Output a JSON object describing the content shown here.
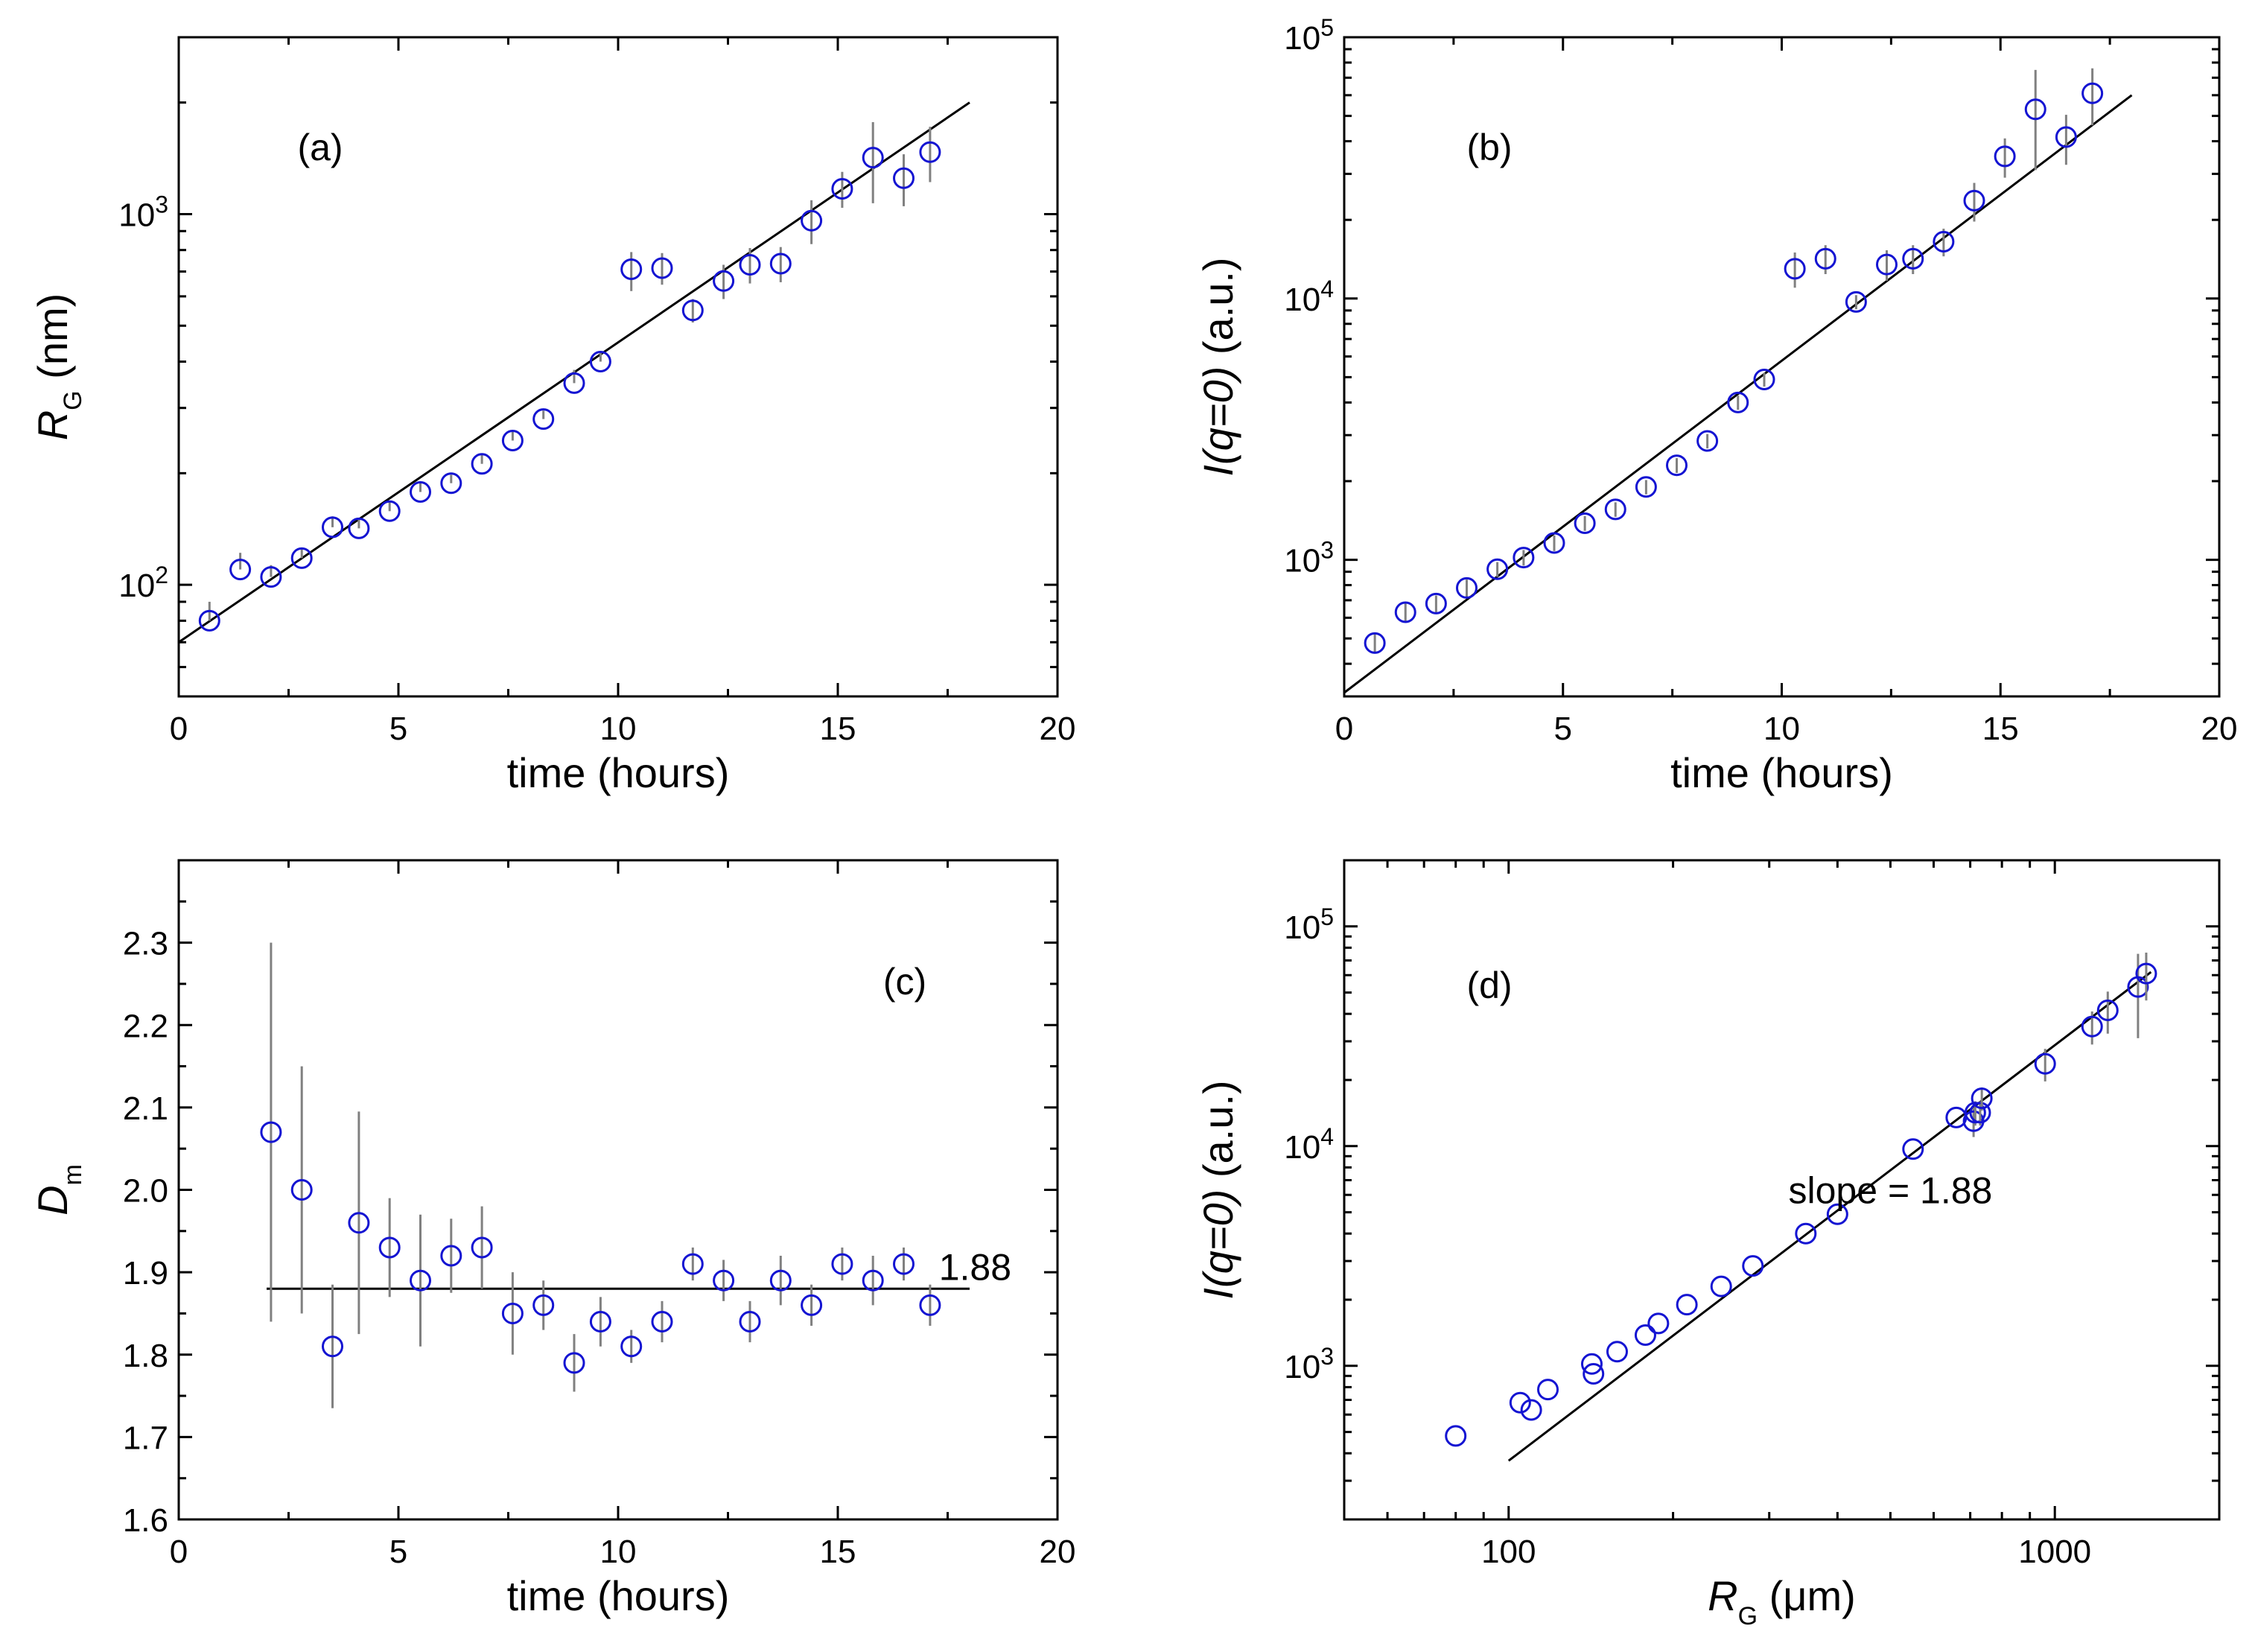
{
  "chart_data": [
    {
      "type": "scatter",
      "panel": "(a)",
      "xlabel": "time (hours)",
      "ylabel": {
        "main": "R",
        "sub": "G",
        "unit": " (nm)"
      },
      "xscale": "linear",
      "yscale": "log",
      "xlim": [
        0,
        20
      ],
      "ylim": [
        50,
        3000
      ],
      "xticks": [
        0,
        5,
        10,
        15,
        20
      ],
      "yticks": [
        {
          "value": 100,
          "base": "10",
          "exp": "2"
        },
        {
          "value": 1000,
          "base": "10",
          "exp": "3"
        }
      ],
      "series": [
        {
          "name": "data",
          "x": [
            0.7,
            1.4,
            2.1,
            2.8,
            3.5,
            4.1,
            4.8,
            5.5,
            6.2,
            6.9,
            7.6,
            8.3,
            9.0,
            9.6,
            10.3,
            11.0,
            11.7,
            12.4,
            13.0,
            13.7,
            14.4,
            15.1,
            15.8,
            16.5,
            17.1
          ],
          "y": [
            80,
            110,
            105,
            118,
            143,
            142,
            158,
            178,
            188,
            212,
            245,
            280,
            350,
            400,
            710,
            715,
            550,
            660,
            730,
            735,
            960,
            1170,
            1420,
            1250,
            1470
          ],
          "err": [
            [
              0,
              10
            ],
            [
              0,
              12
            ],
            [
              0,
              8
            ],
            [
              0,
              8
            ],
            [
              0,
              10
            ],
            [
              0,
              8
            ],
            [
              0,
              9
            ],
            [
              0,
              10
            ],
            [
              0,
              10
            ],
            [
              0,
              12
            ],
            [
              0,
              14
            ],
            [
              0,
              15
            ],
            [
              0,
              30
            ],
            [
              0,
              25
            ],
            [
              90,
              80
            ],
            [
              70,
              70
            ],
            [
              40,
              40
            ],
            [
              70,
              70
            ],
            [
              80,
              80
            ],
            [
              80,
              80
            ],
            [
              130,
              130
            ],
            [
              130,
              130
            ],
            [
              350,
              350
            ],
            [
              200,
              200
            ],
            [
              250,
              250
            ]
          ]
        }
      ],
      "fit": {
        "x": [
          0,
          18
        ],
        "y": [
          70,
          2000
        ]
      },
      "annotations": []
    },
    {
      "type": "scatter",
      "panel": "(b)",
      "xlabel": "time (hours)",
      "ylabel": {
        "main": "I(q=0)",
        "sub": "",
        "unit": " (a.u.)"
      },
      "xscale": "linear",
      "yscale": "log",
      "xlim": [
        0,
        20
      ],
      "ylim": [
        300,
        100000
      ],
      "xticks": [
        0,
        5,
        10,
        15,
        20
      ],
      "yticks": [
        {
          "value": 1000,
          "base": "10",
          "exp": "3"
        },
        {
          "value": 10000,
          "base": "10",
          "exp": "4"
        },
        {
          "value": 100000,
          "base": "10",
          "exp": "5"
        }
      ],
      "series": [
        {
          "name": "data",
          "x": [
            0.7,
            1.4,
            2.1,
            2.8,
            3.5,
            4.1,
            4.8,
            5.5,
            6.2,
            6.9,
            7.6,
            8.3,
            9.0,
            9.6,
            10.3,
            11.0,
            11.7,
            12.4,
            13.0,
            13.7,
            14.4,
            15.1,
            15.8,
            16.5,
            17.1
          ],
          "y": [
            480,
            630,
            680,
            780,
            920,
            1020,
            1160,
            1380,
            1560,
            1900,
            2300,
            2850,
            4000,
            4900,
            13000,
            14200,
            9700,
            13500,
            14200,
            16500,
            23700,
            35000,
            53000,
            41500,
            61000
          ],
          "err": [
            [
              40,
              40
            ],
            [
              50,
              50
            ],
            [
              50,
              50
            ],
            [
              60,
              60
            ],
            [
              60,
              60
            ],
            [
              70,
              70
            ],
            [
              80,
              80
            ],
            [
              90,
              90
            ],
            [
              100,
              100
            ],
            [
              120,
              120
            ],
            [
              150,
              150
            ],
            [
              180,
              180
            ],
            [
              250,
              250
            ],
            [
              300,
              300
            ],
            [
              2000,
              2000
            ],
            [
              1800,
              1800
            ],
            [
              600,
              600
            ],
            [
              1800,
              1800
            ],
            [
              1800,
              1800
            ],
            [
              2000,
              2000
            ],
            [
              4000,
              4000
            ],
            [
              6000,
              6000
            ],
            [
              22000,
              22000
            ],
            [
              9000,
              9000
            ],
            [
              15000,
              15000
            ]
          ]
        }
      ],
      "fit": {
        "x": [
          0,
          18
        ],
        "y": [
          310,
          60000
        ]
      },
      "annotations": []
    },
    {
      "type": "scatter",
      "panel": "(c)",
      "xlabel": "time (hours)",
      "ylabel": {
        "main": "D",
        "sub": "m",
        "unit": ""
      },
      "xscale": "linear",
      "yscale": "linear",
      "xlim": [
        0,
        20
      ],
      "ylim": [
        1.6,
        2.4
      ],
      "xticks": [
        0,
        5,
        10,
        15,
        20
      ],
      "yticks": [
        {
          "value": 1.6,
          "label": "1.6"
        },
        {
          "value": 1.7,
          "label": "1.7"
        },
        {
          "value": 1.8,
          "label": "1.8"
        },
        {
          "value": 1.9,
          "label": "1.9"
        },
        {
          "value": 2.0,
          "label": "2.0"
        },
        {
          "value": 2.1,
          "label": "2.1"
        },
        {
          "value": 2.2,
          "label": "2.2"
        },
        {
          "value": 2.3,
          "label": "2.3"
        }
      ],
      "series": [
        {
          "name": "data",
          "x": [
            2.1,
            2.8,
            3.5,
            4.1,
            4.8,
            5.5,
            6.2,
            6.9,
            7.6,
            8.3,
            9.0,
            9.6,
            10.3,
            11.0,
            11.7,
            12.4,
            13.0,
            13.7,
            14.4,
            15.1,
            15.8,
            16.5,
            17.1
          ],
          "y": [
            2.07,
            2.0,
            1.81,
            1.96,
            1.93,
            1.89,
            1.92,
            1.93,
            1.85,
            1.86,
            1.79,
            1.84,
            1.81,
            1.84,
            1.91,
            1.89,
            1.84,
            1.89,
            1.86,
            1.91,
            1.89,
            1.91,
            1.86
          ],
          "err": [
            [
              0.23,
              0.23
            ],
            [
              0.15,
              0.15
            ],
            [
              0.075,
              0.075
            ],
            [
              0.135,
              0.135
            ],
            [
              0.06,
              0.06
            ],
            [
              0.08,
              0.08
            ],
            [
              0.045,
              0.045
            ],
            [
              0.05,
              0.05
            ],
            [
              0.05,
              0.05
            ],
            [
              0.03,
              0.03
            ],
            [
              0.035,
              0.035
            ],
            [
              0.03,
              0.03
            ],
            [
              0.02,
              0.02
            ],
            [
              0.025,
              0.025
            ],
            [
              0.02,
              0.02
            ],
            [
              0.025,
              0.025
            ],
            [
              0.025,
              0.025
            ],
            [
              0.03,
              0.03
            ],
            [
              0.025,
              0.025
            ],
            [
              0.02,
              0.02
            ],
            [
              0.03,
              0.03
            ],
            [
              0.02,
              0.02
            ],
            [
              0.025,
              0.025
            ]
          ]
        }
      ],
      "fit": {
        "x": [
          2.0,
          18
        ],
        "y": [
          1.88,
          1.88
        ]
      },
      "annotations": [
        {
          "text": "1.88",
          "x": 17.3,
          "y": 1.88
        }
      ]
    },
    {
      "type": "scatter",
      "panel": "(d)",
      "xlabel": {
        "main": "R",
        "sub": "G",
        "unit": " (μm)"
      },
      "ylabel": {
        "main": "I(q=0)",
        "sub": "",
        "unit": " (a.u.)"
      },
      "xscale": "log",
      "yscale": "log",
      "xlim": [
        50,
        2000
      ],
      "ylim": [
        200,
        200000
      ],
      "xticks": [
        {
          "value": 100,
          "label": "100"
        },
        {
          "value": 1000,
          "label": "1000"
        }
      ],
      "yticks": [
        {
          "value": 1000,
          "base": "10",
          "exp": "3"
        },
        {
          "value": 10000,
          "base": "10",
          "exp": "4"
        },
        {
          "value": 100000,
          "base": "10",
          "exp": "5"
        }
      ],
      "series": [
        {
          "name": "data",
          "x": [
            80,
            105,
            110,
            118,
            143,
            142,
            158,
            178,
            188,
            212,
            245,
            280,
            350,
            400,
            550,
            660,
            710,
            715,
            730,
            735,
            960,
            1170,
            1250,
            1420,
            1470
          ],
          "y": [
            480,
            680,
            630,
            780,
            920,
            1020,
            1160,
            1380,
            1560,
            1900,
            2300,
            2850,
            4000,
            4900,
            9700,
            13500,
            13000,
            14200,
            14200,
            16500,
            23700,
            35000,
            41500,
            53000,
            61000
          ],
          "err": [
            [
              0,
              0
            ],
            [
              0,
              0
            ],
            [
              0,
              0
            ],
            [
              0,
              0
            ],
            [
              0,
              0
            ],
            [
              0,
              0
            ],
            [
              0,
              0
            ],
            [
              0,
              0
            ],
            [
              0,
              0
            ],
            [
              0,
              0
            ],
            [
              0,
              0
            ],
            [
              0,
              0
            ],
            [
              0,
              0
            ],
            [
              0,
              0
            ],
            [
              0,
              0
            ],
            [
              0,
              0
            ],
            [
              2000,
              2000
            ],
            [
              1800,
              1800
            ],
            [
              1800,
              1800
            ],
            [
              2000,
              2000
            ],
            [
              4000,
              4000
            ],
            [
              6000,
              6000
            ],
            [
              9000,
              9000
            ],
            [
              22000,
              22000
            ],
            [
              15000,
              15000
            ]
          ]
        }
      ],
      "fit": {
        "x": [
          100,
          1500
        ],
        "y": [
          370,
          62000
        ]
      },
      "annotations": [
        {
          "text": "slope = 1.88",
          "x": 500,
          "y": 5500
        }
      ]
    }
  ]
}
